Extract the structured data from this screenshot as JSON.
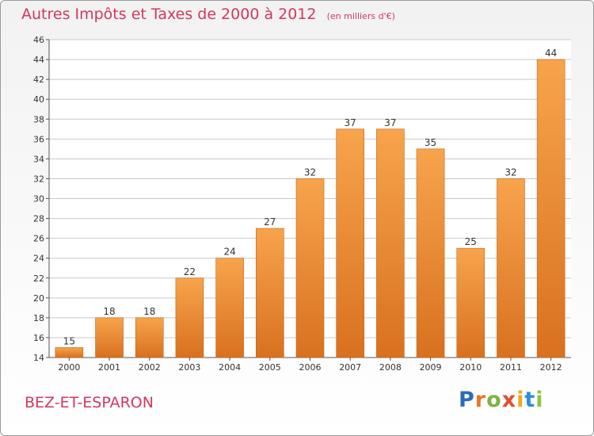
{
  "header": {
    "title": "Autres Impôts et Taxes de 2000 à 2012",
    "subtitle": "(en milliers d'€)"
  },
  "footer": {
    "commune": "BEZ-ET-ESPARON",
    "logo_letters": [
      "P",
      "r",
      "o",
      "x",
      "i",
      "t",
      "i"
    ]
  },
  "colors": {
    "accent": "#d1385f",
    "bar_top": "#f7a44c",
    "bar_bottom": "#d9711f",
    "grid": "#c9c9c9"
  },
  "chart_data": {
    "type": "bar",
    "categories": [
      "2000",
      "2001",
      "2002",
      "2003",
      "2004",
      "2005",
      "2006",
      "2007",
      "2008",
      "2009",
      "2010",
      "2011",
      "2012"
    ],
    "values": [
      15,
      18,
      18,
      22,
      24,
      27,
      32,
      37,
      37,
      35,
      25,
      32,
      44
    ],
    "ylim": [
      14,
      46
    ],
    "yticks": [
      14,
      16,
      18,
      20,
      22,
      24,
      26,
      28,
      30,
      32,
      34,
      36,
      38,
      40,
      42,
      44,
      46
    ],
    "grid": true,
    "data_labels": true
  }
}
